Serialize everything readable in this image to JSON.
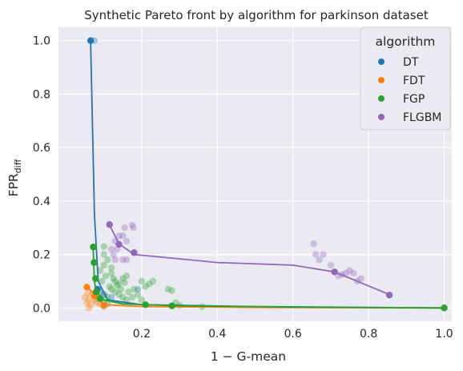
{
  "chart_data": {
    "type": "scatter",
    "title": "Synthetic Pareto front by algorithm for parkinson dataset",
    "xlabel": "1 − G-mean",
    "ylabel_main": "FPR",
    "ylabel_sub": "diff",
    "xlim": [
      -0.02,
      1.02
    ],
    "ylim": [
      -0.05,
      1.05
    ],
    "xticks": [
      0.2,
      0.4,
      0.6,
      0.8,
      1.0
    ],
    "xtick_labels": [
      "0.2",
      "0.4",
      "0.6",
      "0.8",
      "1.0"
    ],
    "yticks": [
      0.0,
      0.2,
      0.4,
      0.6,
      0.8,
      1.0
    ],
    "ytick_labels": [
      "0.0",
      "0.2",
      "0.4",
      "0.6",
      "0.8",
      "1.0"
    ],
    "grid": true,
    "legend": {
      "title": "algorithm",
      "placement": "top-right"
    },
    "series": [
      {
        "name": "DT",
        "color": "#1f77b4",
        "front": [
          [
            0.065,
            1.0
          ],
          [
            0.075,
            0.35
          ],
          [
            0.085,
            0.1
          ],
          [
            0.11,
            0.03
          ],
          [
            0.2,
            0.012
          ],
          [
            0.5,
            0.005
          ],
          [
            1.0,
            0.0
          ]
        ],
        "front_points": [
          [
            0.065,
            1.0
          ],
          [
            0.083,
            0.07
          ],
          [
            1.0,
            0.0
          ]
        ],
        "cloud": [
          [
            0.075,
            1.0
          ],
          [
            0.083,
            0.07
          ],
          [
            0.19,
            0.07
          ],
          [
            0.09,
            0.06
          ],
          [
            0.1,
            0.05
          ],
          [
            0.12,
            0.04
          ]
        ]
      },
      {
        "name": "FDT",
        "color": "#ff7f0e",
        "front": [
          [
            0.055,
            0.078
          ],
          [
            0.07,
            0.06
          ],
          [
            0.08,
            0.04
          ],
          [
            0.1,
            0.012
          ],
          [
            0.2,
            0.005
          ],
          [
            0.5,
            0.002
          ],
          [
            1.0,
            0.0
          ]
        ],
        "front_points": [
          [
            0.055,
            0.078
          ],
          [
            0.075,
            0.045
          ],
          [
            0.1,
            0.01
          ]
        ],
        "cloud": [
          [
            0.05,
            0.04
          ],
          [
            0.055,
            0.02
          ],
          [
            0.06,
            0.03
          ],
          [
            0.065,
            0.01
          ],
          [
            0.07,
            0.05
          ],
          [
            0.08,
            0.02
          ],
          [
            0.09,
            0.015
          ],
          [
            0.1,
            0.005
          ],
          [
            0.06,
            0.0
          ],
          [
            0.075,
            0.03
          ],
          [
            0.085,
            0.035
          ],
          [
            0.058,
            0.055
          ]
        ]
      },
      {
        "name": "FGP",
        "color": "#2ca02c",
        "front": [
          [
            0.072,
            0.23
          ],
          [
            0.073,
            0.17
          ],
          [
            0.075,
            0.1
          ],
          [
            0.08,
            0.06
          ],
          [
            0.1,
            0.03
          ],
          [
            0.15,
            0.015
          ],
          [
            0.3,
            0.008
          ],
          [
            0.6,
            0.003
          ],
          [
            1.0,
            0.0
          ]
        ],
        "front_points": [
          [
            0.072,
            0.228
          ],
          [
            0.074,
            0.17
          ],
          [
            0.078,
            0.11
          ],
          [
            0.08,
            0.06
          ],
          [
            0.09,
            0.035
          ],
          [
            0.21,
            0.012
          ],
          [
            0.28,
            0.008
          ],
          [
            1.0,
            0.0
          ]
        ],
        "cloud": [
          [
            0.09,
            0.14
          ],
          [
            0.1,
            0.16
          ],
          [
            0.11,
            0.18
          ],
          [
            0.1,
            0.2
          ],
          [
            0.12,
            0.13
          ],
          [
            0.13,
            0.1
          ],
          [
            0.14,
            0.09
          ],
          [
            0.15,
            0.11
          ],
          [
            0.16,
            0.12
          ],
          [
            0.12,
            0.07
          ],
          [
            0.13,
            0.06
          ],
          [
            0.14,
            0.05
          ],
          [
            0.15,
            0.04
          ],
          [
            0.16,
            0.03
          ],
          [
            0.1,
            0.05
          ],
          [
            0.11,
            0.04
          ],
          [
            0.2,
            0.1
          ],
          [
            0.21,
            0.08
          ],
          [
            0.22,
            0.09
          ],
          [
            0.23,
            0.1
          ],
          [
            0.27,
            0.07
          ],
          [
            0.28,
            0.065
          ],
          [
            0.29,
            0.02
          ],
          [
            0.3,
            0.01
          ],
          [
            0.36,
            0.005
          ],
          [
            0.1,
            0.23
          ],
          [
            0.12,
            0.15
          ],
          [
            0.18,
            0.07
          ],
          [
            0.19,
            0.05
          ],
          [
            0.095,
            0.1
          ],
          [
            0.105,
            0.12
          ],
          [
            0.115,
            0.08
          ],
          [
            0.125,
            0.11
          ],
          [
            0.135,
            0.085
          ],
          [
            0.145,
            0.07
          ],
          [
            0.155,
            0.095
          ],
          [
            0.165,
            0.06
          ],
          [
            0.175,
            0.04
          ],
          [
            0.2,
            0.03
          ],
          [
            0.1,
            0.02
          ],
          [
            0.11,
            0.015
          ]
        ]
      },
      {
        "name": "FLGBM",
        "color": "#9467bd",
        "front": [
          [
            0.115,
            0.31
          ],
          [
            0.14,
            0.24
          ],
          [
            0.18,
            0.2
          ],
          [
            0.4,
            0.17
          ],
          [
            0.6,
            0.16
          ],
          [
            0.71,
            0.135
          ],
          [
            0.855,
            0.05
          ]
        ],
        "front_points": [
          [
            0.115,
            0.312
          ],
          [
            0.14,
            0.238
          ],
          [
            0.18,
            0.207
          ],
          [
            0.71,
            0.135
          ],
          [
            0.855,
            0.048
          ]
        ],
        "cloud": [
          [
            0.12,
            0.22
          ],
          [
            0.13,
            0.25
          ],
          [
            0.14,
            0.27
          ],
          [
            0.15,
            0.27
          ],
          [
            0.155,
            0.3
          ],
          [
            0.16,
            0.25
          ],
          [
            0.175,
            0.31
          ],
          [
            0.178,
            0.3
          ],
          [
            0.125,
            0.2
          ],
          [
            0.135,
            0.22
          ],
          [
            0.13,
            0.18
          ],
          [
            0.15,
            0.18
          ],
          [
            0.16,
            0.18
          ],
          [
            0.655,
            0.24
          ],
          [
            0.66,
            0.2
          ],
          [
            0.67,
            0.18
          ],
          [
            0.68,
            0.2
          ],
          [
            0.7,
            0.16
          ],
          [
            0.72,
            0.12
          ],
          [
            0.74,
            0.13
          ],
          [
            0.75,
            0.14
          ],
          [
            0.76,
            0.13
          ],
          [
            0.77,
            0.1
          ],
          [
            0.78,
            0.11
          ],
          [
            0.73,
            0.125
          ]
        ]
      }
    ]
  }
}
